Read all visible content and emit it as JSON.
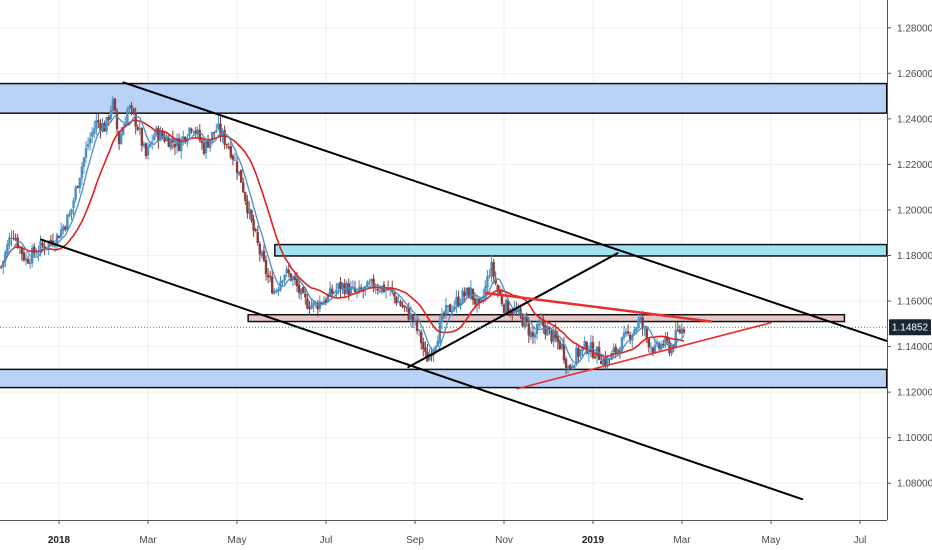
{
  "chart_data": {
    "type": "candlestick",
    "instrument_price": "1.14852",
    "colors": {
      "bull": "#4a90c2",
      "bear": "#8a3b3b",
      "ma_fast": "#4a90c2",
      "ma_slow": "#e02020",
      "zone_blue": "#b9d2f7",
      "zone_cyan": "#9fe3f2",
      "zone_maroon": "#e6c6c6",
      "trend_black": "#000000",
      "trend_red": "#e53030",
      "price_label_bg": "#1a2733"
    },
    "ylim": [
      1.07,
      1.29
    ],
    "y_ticks": [
      "1.28000",
      "1.26000",
      "1.24000",
      "1.22000",
      "1.20000",
      "1.18000",
      "1.16000",
      "1.14000",
      "1.12000",
      "1.10000",
      "1.08000"
    ],
    "x_axis": [
      {
        "label": "2018",
        "bold": true,
        "month": 0
      },
      {
        "label": "Mar",
        "bold": false,
        "month": 2
      },
      {
        "label": "May",
        "bold": false,
        "month": 4
      },
      {
        "label": "Jul",
        "bold": false,
        "month": 6
      },
      {
        "label": "Sep",
        "bold": false,
        "month": 8
      },
      {
        "label": "Nov",
        "bold": false,
        "month": 10
      },
      {
        "label": "2019",
        "bold": true,
        "month": 12
      },
      {
        "label": "Mar",
        "bold": false,
        "month": 14
      },
      {
        "label": "May",
        "bold": false,
        "month": 16
      },
      {
        "label": "Jul",
        "bold": false,
        "month": 18
      }
    ],
    "zones": [
      {
        "name": "upper-resistance-zone",
        "x0": -1.5,
        "x1": 18.6,
        "y0": 1.2425,
        "y1": 1.2555,
        "color": "zone_blue"
      },
      {
        "name": "cyan-resistance-zone",
        "x0": 4.85,
        "x1": 18.6,
        "y0": 1.1798,
        "y1": 1.1848,
        "color": "zone_cyan"
      },
      {
        "name": "middle-maroon-zone",
        "x0": 4.25,
        "x1": 17.65,
        "y0": 1.151,
        "y1": 1.154,
        "color": "zone_maroon"
      },
      {
        "name": "lower-support-zone",
        "x0": -1.5,
        "x1": 18.6,
        "y0": 1.122,
        "y1": 1.13,
        "color": "zone_blue"
      }
    ],
    "trendlines": [
      {
        "name": "upper-channel-line",
        "x0": 1.45,
        "y0": 1.256,
        "x1": 18.6,
        "y1": 1.1425,
        "color": "trend_black",
        "width": 2
      },
      {
        "name": "lower-channel-line",
        "x0": -0.4,
        "y0": 1.187,
        "x1": 16.7,
        "y1": 1.073,
        "color": "trend_black",
        "width": 2
      },
      {
        "name": "rising-black-line",
        "x0": 7.85,
        "y0": 1.131,
        "x1": 12.55,
        "y1": 1.181,
        "color": "trend_black",
        "width": 2
      },
      {
        "name": "red-upper-wedge-line",
        "x0": 9.6,
        "y0": 1.1635,
        "x1": 14.65,
        "y1": 1.151,
        "color": "trend_red",
        "width": 2.5
      },
      {
        "name": "red-lower-wedge-line",
        "x0": 10.3,
        "y0": 1.1215,
        "x1": 16.0,
        "y1": 1.1505,
        "color": "trend_red",
        "width": 1.6
      }
    ],
    "price_anchors": [
      [
        -1.3,
        1.175
      ],
      [
        -1.05,
        1.191
      ],
      [
        -0.75,
        1.178
      ],
      [
        -0.45,
        1.183
      ],
      [
        -0.05,
        1.188
      ],
      [
        0.25,
        1.198
      ],
      [
        0.45,
        1.215
      ],
      [
        0.65,
        1.229
      ],
      [
        0.85,
        1.239
      ],
      [
        1.05,
        1.236
      ],
      [
        1.2,
        1.248
      ],
      [
        1.35,
        1.23
      ],
      [
        1.55,
        1.245
      ],
      [
        1.75,
        1.238
      ],
      [
        1.95,
        1.223
      ],
      [
        2.15,
        1.234
      ],
      [
        2.45,
        1.231
      ],
      [
        2.7,
        1.229
      ],
      [
        3.0,
        1.238
      ],
      [
        3.25,
        1.227
      ],
      [
        3.55,
        1.236
      ],
      [
        3.85,
        1.227
      ],
      [
        4.1,
        1.213
      ],
      [
        4.3,
        1.196
      ],
      [
        4.5,
        1.182
      ],
      [
        4.7,
        1.17
      ],
      [
        4.85,
        1.164
      ],
      [
        5.05,
        1.173
      ],
      [
        5.25,
        1.17
      ],
      [
        5.5,
        1.16
      ],
      [
        5.75,
        1.158
      ],
      [
        6.05,
        1.162
      ],
      [
        6.35,
        1.167
      ],
      [
        6.7,
        1.163
      ],
      [
        7.05,
        1.167
      ],
      [
        7.4,
        1.165
      ],
      [
        7.7,
        1.158
      ],
      [
        7.95,
        1.152
      ],
      [
        8.15,
        1.142
      ],
      [
        8.25,
        1.134
      ],
      [
        8.45,
        1.142
      ],
      [
        8.65,
        1.154
      ],
      [
        8.85,
        1.158
      ],
      [
        9.05,
        1.162
      ],
      [
        9.25,
        1.164
      ],
      [
        9.45,
        1.156
      ],
      [
        9.6,
        1.167
      ],
      [
        9.7,
        1.176
      ],
      [
        9.85,
        1.165
      ],
      [
        10.0,
        1.158
      ],
      [
        10.2,
        1.156
      ],
      [
        10.45,
        1.151
      ],
      [
        10.65,
        1.144
      ],
      [
        10.85,
        1.15
      ],
      [
        11.05,
        1.145
      ],
      [
        11.3,
        1.14
      ],
      [
        11.45,
        1.13
      ],
      [
        11.6,
        1.136
      ],
      [
        11.85,
        1.14
      ],
      [
        12.1,
        1.137
      ],
      [
        12.3,
        1.133
      ],
      [
        12.5,
        1.138
      ],
      [
        12.7,
        1.143
      ],
      [
        12.9,
        1.147
      ],
      [
        13.05,
        1.152
      ],
      [
        13.2,
        1.144
      ],
      [
        13.4,
        1.138
      ],
      [
        13.6,
        1.142
      ],
      [
        13.75,
        1.139
      ],
      [
        13.9,
        1.146
      ],
      [
        14.05,
        1.1485
      ]
    ]
  }
}
